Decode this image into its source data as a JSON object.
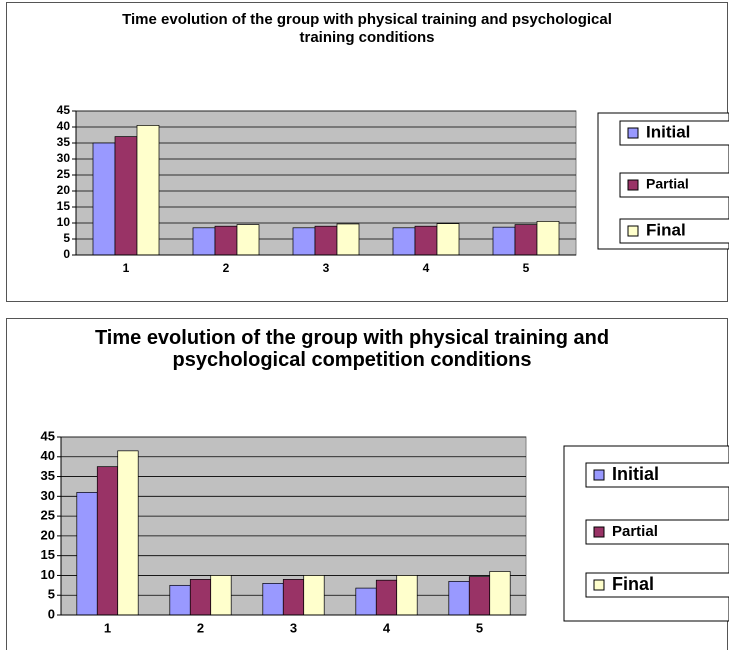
{
  "chart_data": [
    {
      "type": "bar",
      "title": "Time evolution of the group with physical training and psychological training conditions",
      "categories": [
        "1",
        "2",
        "3",
        "4",
        "5"
      ],
      "series": [
        {
          "name": "Initial",
          "color": "#9999ff",
          "values": [
            35,
            8.5,
            8.5,
            8.5,
            8.7
          ]
        },
        {
          "name": "Partial",
          "color": "#993366",
          "values": [
            37,
            9,
            9,
            9,
            9.5
          ]
        },
        {
          "name": "Final",
          "color": "#ffffcc",
          "values": [
            40.5,
            9.5,
            9.7,
            9.8,
            10.5
          ]
        }
      ],
      "ylim": [
        0,
        45
      ],
      "yticks": [
        0,
        5,
        10,
        15,
        20,
        25,
        30,
        35,
        40,
        45
      ],
      "grid": true,
      "legend": "right"
    },
    {
      "type": "bar",
      "title": "Time evolution of the group with physical training and psychological competition conditions",
      "categories": [
        "1",
        "2",
        "3",
        "4",
        "5"
      ],
      "series": [
        {
          "name": "Initial",
          "color": "#9999ff",
          "values": [
            31,
            7.5,
            8,
            6.8,
            8.5
          ]
        },
        {
          "name": "Partial",
          "color": "#993366",
          "values": [
            37.5,
            9,
            9,
            8.8,
            9.7
          ]
        },
        {
          "name": "Final",
          "color": "#ffffcc",
          "values": [
            41.5,
            10,
            10,
            10,
            11
          ]
        }
      ],
      "ylim": [
        0,
        45
      ],
      "yticks": [
        0,
        5,
        10,
        15,
        20,
        25,
        30,
        35,
        40,
        45
      ],
      "grid": true,
      "legend": "right"
    }
  ]
}
